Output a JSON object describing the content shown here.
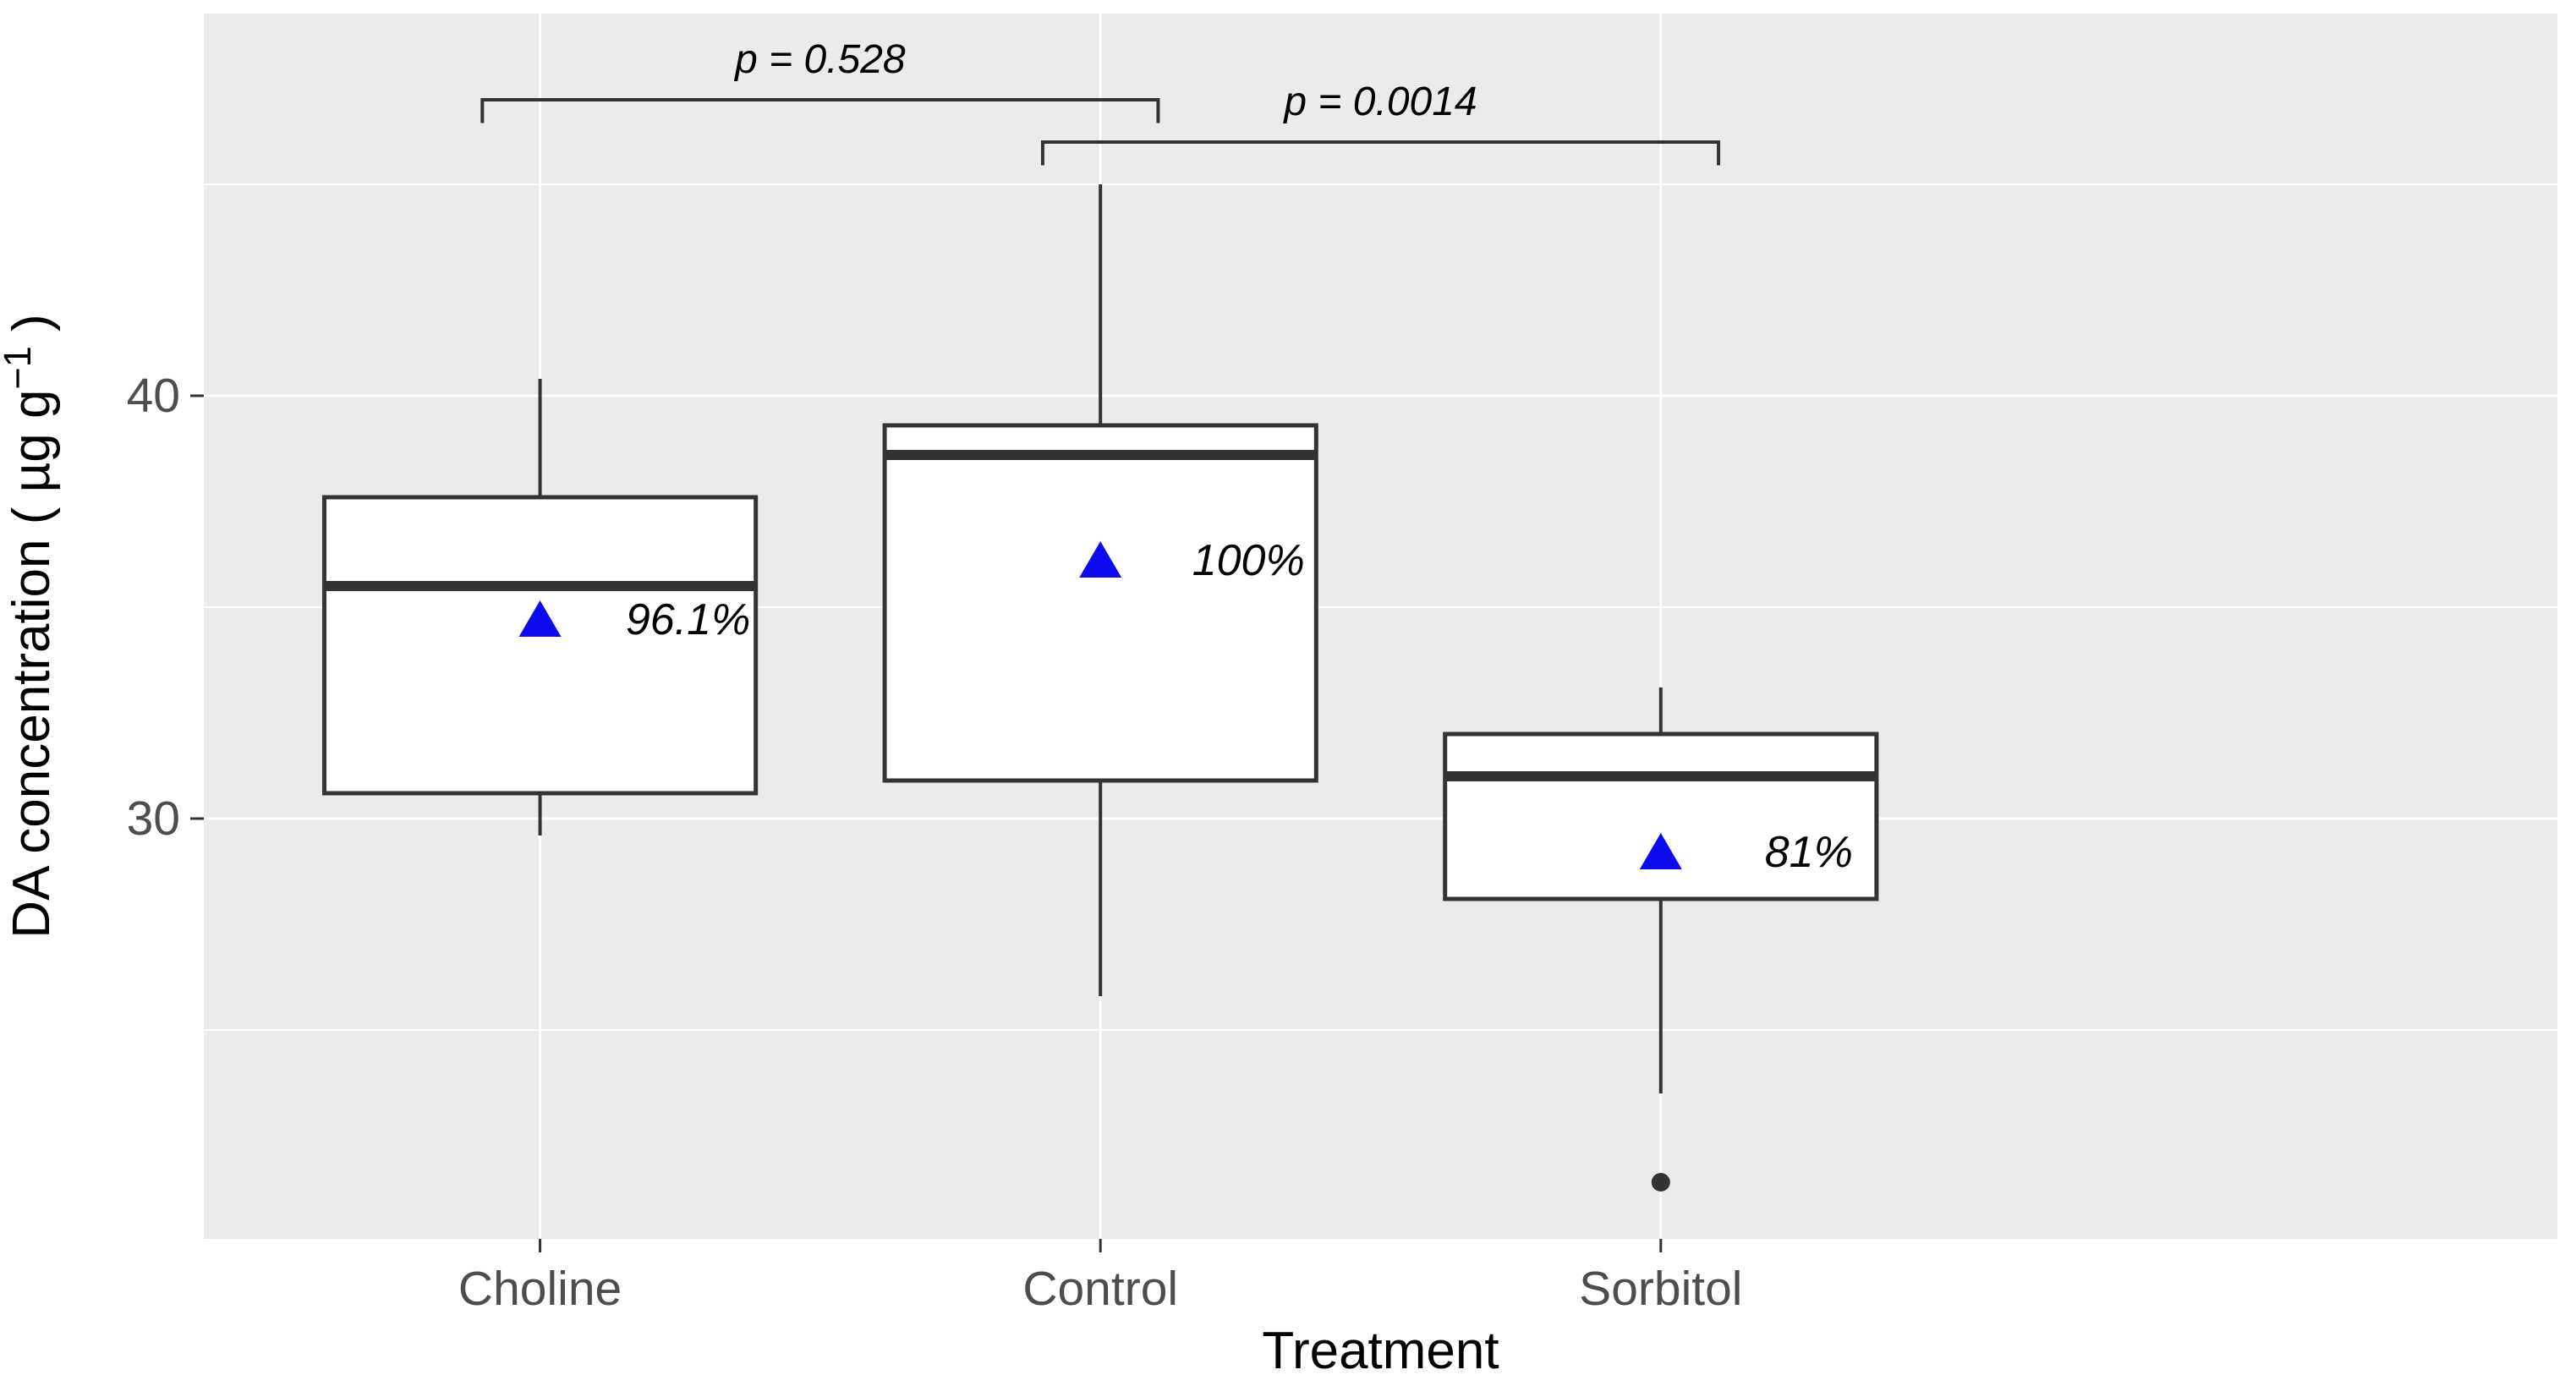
{
  "figure": {
    "background": "#ffffff",
    "panel_background": "#ebebeb",
    "grid_color": "#ffffff",
    "axis_text_color": "#4d4d4d",
    "title_color": "#000000",
    "box_line_color": "#333333",
    "box_fill": "#ffffff",
    "mean_marker_color": "#0b0bee",
    "mean_marker_icon": "triangle-up-icon",
    "outlier_color": "#333333"
  },
  "chart_data": {
    "type": "box",
    "title": "",
    "xlabel": "Treatment",
    "ylabel": "DA concentration ( µg g⁻¹ )",
    "ylabel_parts": {
      "pre": "DA concentration ( µg g",
      "sup": "−1",
      "post": " )"
    },
    "categories": [
      "Choline",
      "Control",
      "Sorbitol"
    ],
    "ylim": [
      20.1,
      49.0
    ],
    "yticks": [
      30,
      40
    ],
    "ytick_labels": [
      "30",
      "40"
    ],
    "yticks_minor": [
      25,
      35,
      45
    ],
    "grid": true,
    "legend": false,
    "series": [
      {
        "name": "Choline",
        "whisker_low": 29.6,
        "q1": 30.6,
        "median": 35.5,
        "q3": 37.6,
        "whisker_high": 40.4,
        "mean": 34.7,
        "mean_label": "96.1%",
        "outliers": []
      },
      {
        "name": "Control",
        "whisker_low": 25.8,
        "q1": 30.9,
        "median": 38.6,
        "q3": 39.3,
        "whisker_high": 45.0,
        "mean": 36.1,
        "mean_label": "100%",
        "outliers": []
      },
      {
        "name": "Sorbitol",
        "whisker_low": 23.5,
        "q1": 28.1,
        "median": 31.0,
        "q3": 32.0,
        "whisker_high": 33.1,
        "mean": 29.2,
        "mean_label": "81%",
        "outliers": [
          21.4
        ]
      }
    ],
    "annotations": [
      {
        "label": "p = 0.528",
        "from": "Choline",
        "to": "Control",
        "y": 47.0,
        "tick_drop": 0.55
      },
      {
        "label": "p = 0.0014",
        "from": "Control",
        "to": "Sorbitol",
        "y": 46.0,
        "tick_drop": 0.55
      }
    ]
  }
}
